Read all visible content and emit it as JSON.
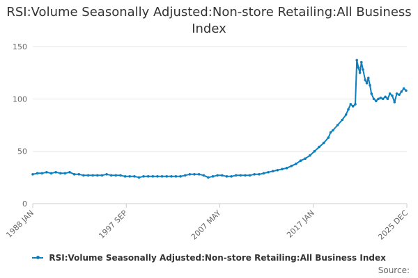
{
  "chart_data": {
    "type": "line",
    "title": "RSI:Volume Seasonally Adjusted:Non-store Retailing:All Business Index",
    "xlabel": "",
    "ylabel": "",
    "ylim": [
      0,
      150
    ],
    "y_ticks": [
      "0",
      "50",
      "100",
      "150"
    ],
    "x_ticks": [
      "1988 JAN",
      "1997 SEP",
      "2007 MAY",
      "2017 JAN",
      "2025 DEC"
    ],
    "grid": "horizontal",
    "legend": "bottom",
    "series": [
      {
        "name": "RSI:Volume Seasonally Adjusted:Non-store Retailing:All Business Index",
        "color": "#0d7fbf",
        "points": [
          [
            "1988-01",
            28
          ],
          [
            "1988-07",
            29
          ],
          [
            "1989-01",
            29
          ],
          [
            "1989-07",
            30
          ],
          [
            "1990-01",
            29
          ],
          [
            "1990-07",
            30
          ],
          [
            "1991-01",
            29
          ],
          [
            "1991-07",
            29
          ],
          [
            "1992-01",
            30
          ],
          [
            "1992-07",
            28
          ],
          [
            "1993-01",
            28
          ],
          [
            "1993-07",
            27
          ],
          [
            "1994-01",
            27
          ],
          [
            "1994-07",
            27
          ],
          [
            "1995-01",
            27
          ],
          [
            "1995-07",
            27
          ],
          [
            "1996-01",
            28
          ],
          [
            "1996-07",
            27
          ],
          [
            "1997-01",
            27
          ],
          [
            "1997-07",
            27
          ],
          [
            "1998-01",
            26
          ],
          [
            "1998-07",
            26
          ],
          [
            "1999-01",
            26
          ],
          [
            "1999-07",
            25
          ],
          [
            "2000-01",
            26
          ],
          [
            "2000-07",
            26
          ],
          [
            "2001-01",
            26
          ],
          [
            "2001-07",
            26
          ],
          [
            "2002-01",
            26
          ],
          [
            "2002-07",
            26
          ],
          [
            "2003-01",
            26
          ],
          [
            "2003-07",
            26
          ],
          [
            "2004-01",
            26
          ],
          [
            "2004-07",
            27
          ],
          [
            "2005-01",
            28
          ],
          [
            "2005-07",
            28
          ],
          [
            "2006-01",
            28
          ],
          [
            "2006-07",
            27
          ],
          [
            "2007-01",
            25
          ],
          [
            "2007-07",
            26
          ],
          [
            "2008-01",
            27
          ],
          [
            "2008-07",
            27
          ],
          [
            "2009-01",
            26
          ],
          [
            "2009-07",
            26
          ],
          [
            "2010-01",
            27
          ],
          [
            "2010-07",
            27
          ],
          [
            "2011-01",
            27
          ],
          [
            "2011-07",
            27
          ],
          [
            "2012-01",
            28
          ],
          [
            "2012-07",
            28
          ],
          [
            "2013-01",
            29
          ],
          [
            "2013-07",
            30
          ],
          [
            "2014-01",
            31
          ],
          [
            "2014-07",
            32
          ],
          [
            "2015-01",
            33
          ],
          [
            "2015-07",
            34
          ],
          [
            "2016-01",
            36
          ],
          [
            "2016-07",
            38
          ],
          [
            "2017-01",
            41
          ],
          [
            "2017-07",
            43
          ],
          [
            "2018-01",
            46
          ],
          [
            "2018-07",
            50
          ],
          [
            "2019-01",
            54
          ],
          [
            "2019-07",
            58
          ],
          [
            "2020-01",
            63
          ],
          [
            "2020-04",
            68
          ],
          [
            "2020-07",
            70
          ],
          [
            "2021-01",
            75
          ],
          [
            "2021-07",
            80
          ],
          [
            "2021-12",
            85
          ],
          [
            "2022-03",
            90
          ],
          [
            "2022-06",
            95
          ],
          [
            "2022-09",
            93
          ],
          [
            "2022-12",
            95
          ],
          [
            "2023-02",
            137
          ],
          [
            "2023-04",
            130
          ],
          [
            "2023-06",
            125
          ],
          [
            "2023-08",
            135
          ],
          [
            "2023-10",
            128
          ],
          [
            "2024-01",
            118
          ],
          [
            "2024-03",
            115
          ],
          [
            "2024-05",
            120
          ],
          [
            "2024-07",
            113
          ],
          [
            "2024-09",
            105
          ],
          [
            "2024-12",
            100
          ],
          [
            "2025-03",
            98
          ],
          [
            "2025-06",
            100
          ],
          [
            "2025-09",
            101
          ],
          [
            "2025-12",
            100
          ],
          [
            "2026-03",
            102
          ],
          [
            "2026-06",
            100
          ],
          [
            "2026-09",
            105
          ],
          [
            "2026-12",
            103
          ],
          [
            "2027-03",
            97
          ],
          [
            "2027-06",
            105
          ],
          [
            "2027-09",
            104
          ],
          [
            "2027-12",
            107
          ],
          [
            "2028-03",
            110
          ],
          [
            "2028-06",
            108
          ]
        ]
      }
    ]
  },
  "source_label": "Source:"
}
